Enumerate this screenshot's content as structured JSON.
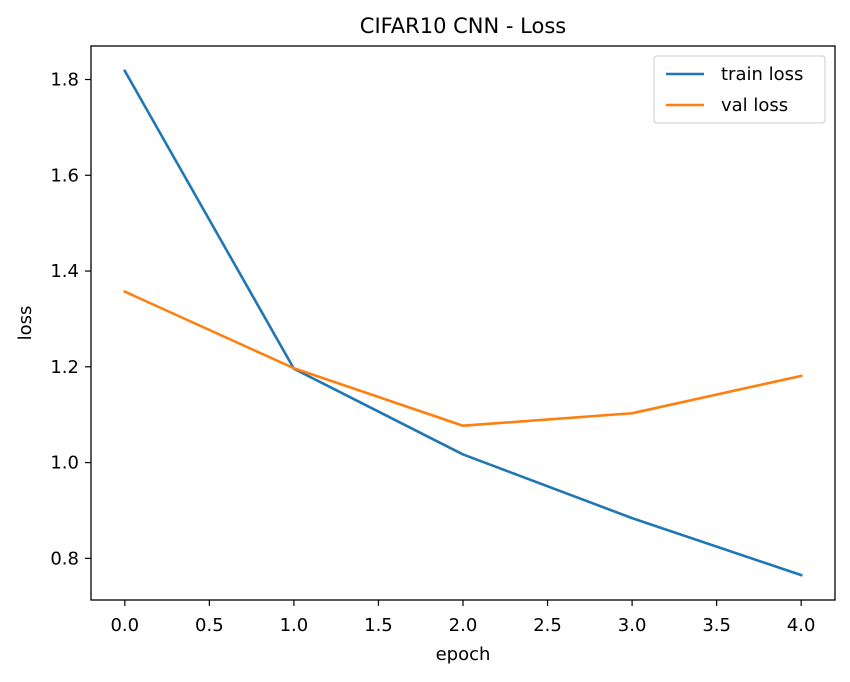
{
  "chart_data": {
    "type": "line",
    "title": "CIFAR10 CNN - Loss",
    "xlabel": "epoch",
    "ylabel": "loss",
    "x": [
      0,
      1,
      2,
      3,
      4
    ],
    "series": [
      {
        "name": "train loss",
        "color": "#1f77b4",
        "values": [
          1.818,
          1.196,
          1.017,
          0.884,
          0.765
        ]
      },
      {
        "name": "val loss",
        "color": "#ff7f0e",
        "values": [
          1.357,
          1.197,
          1.077,
          1.103,
          1.181
        ]
      }
    ],
    "xticks": [
      0.0,
      0.5,
      1.0,
      1.5,
      2.0,
      2.5,
      3.0,
      3.5,
      4.0
    ],
    "xtick_labels": [
      "0.0",
      "0.5",
      "1.0",
      "1.5",
      "2.0",
      "2.5",
      "3.0",
      "3.5",
      "4.0"
    ],
    "yticks": [
      0.8,
      1.0,
      1.2,
      1.4,
      1.6,
      1.8
    ],
    "ytick_labels": [
      "0.8",
      "1.0",
      "1.2",
      "1.4",
      "1.6",
      "1.8"
    ],
    "xlim": [
      -0.2,
      4.2
    ],
    "ylim": [
      0.713,
      1.87
    ],
    "grid": false,
    "legend_position": "top-right"
  }
}
